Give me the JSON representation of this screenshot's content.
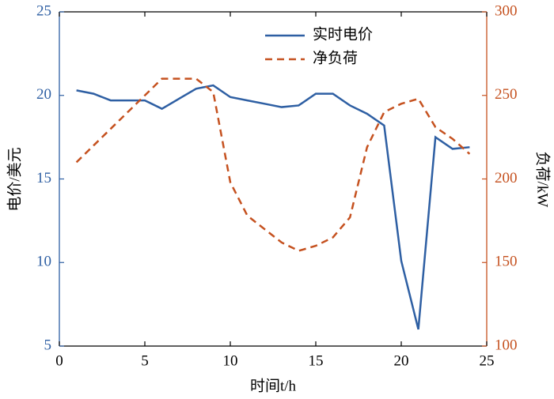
{
  "chart_data": {
    "type": "line",
    "xlabel": "时间t/h",
    "ylabel": "电价/美元",
    "y2label": "负荷/kW",
    "x": [
      1,
      2,
      3,
      4,
      5,
      6,
      7,
      8,
      9,
      10,
      11,
      12,
      13,
      14,
      15,
      16,
      17,
      18,
      19,
      20,
      21,
      22,
      23,
      24
    ],
    "series": [
      {
        "name": "实时电价",
        "color": "#2e5fa3",
        "dash": "solid",
        "axis": "y",
        "values": [
          20.3,
          20.1,
          19.7,
          19.7,
          19.7,
          19.2,
          19.8,
          20.4,
          20.6,
          19.9,
          19.7,
          19.5,
          19.3,
          19.4,
          20.1,
          20.1,
          19.4,
          18.9,
          18.2,
          10.1,
          6.0,
          17.5,
          16.8,
          16.9
        ]
      },
      {
        "name": "净负荷",
        "color": "#c5511f",
        "dash": "dashed",
        "axis": "y2",
        "values": [
          210,
          220,
          230,
          240,
          250,
          260,
          260,
          260,
          252,
          198,
          178,
          170,
          162,
          157,
          160,
          165,
          177,
          219,
          240,
          245,
          248,
          231,
          224,
          215
        ]
      }
    ],
    "xlim": [
      0,
      25
    ],
    "xticks": [
      0,
      5,
      10,
      15,
      20,
      25
    ],
    "ylim": [
      5,
      25
    ],
    "yticks": [
      5,
      10,
      15,
      20,
      25
    ],
    "y2lim": [
      100,
      300
    ],
    "y2ticks": [
      100,
      150,
      200,
      250,
      300
    ],
    "grid": false
  }
}
